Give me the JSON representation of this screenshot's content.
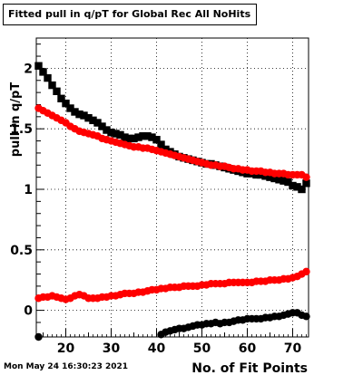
{
  "chart_data": {
    "type": "scatter",
    "title": "Fitted pull in q/pT for Global Rec All NoHits",
    "xlabel": "No. of Fit Points",
    "ylabel": "pull in q/pT",
    "xlim": [
      13.5,
      73.5
    ],
    "ylim": [
      -0.22,
      2.25
    ],
    "x_ticks": [
      20,
      30,
      40,
      50,
      60,
      70
    ],
    "y_ticks": [
      0,
      0.5,
      1,
      1.5,
      2
    ],
    "x_tick_labels": [
      "20",
      "30",
      "40",
      "50",
      "60",
      "70"
    ],
    "y_tick_labels": [
      "0",
      "0.5",
      "1",
      "1.5",
      "2"
    ],
    "grid": true,
    "series": [
      {
        "marker": "square",
        "color": "#000000",
        "x": [
          14,
          15,
          16,
          17,
          18,
          19,
          20,
          21,
          22,
          23,
          24,
          25,
          26,
          27,
          28,
          29,
          30,
          31,
          32,
          33,
          34,
          35,
          36,
          37,
          38,
          39,
          40,
          41,
          42,
          43,
          44,
          45,
          46,
          47,
          48,
          49,
          50,
          51,
          52,
          53,
          54,
          55,
          56,
          57,
          58,
          59,
          60,
          61,
          62,
          63,
          64,
          65,
          66,
          67,
          68,
          69,
          70,
          71,
          72,
          73
        ],
        "y": [
          2.02,
          1.97,
          1.92,
          1.86,
          1.81,
          1.75,
          1.71,
          1.67,
          1.64,
          1.62,
          1.61,
          1.59,
          1.57,
          1.55,
          1.52,
          1.49,
          1.47,
          1.46,
          1.45,
          1.43,
          1.42,
          1.42,
          1.43,
          1.44,
          1.44,
          1.43,
          1.41,
          1.37,
          1.33,
          1.31,
          1.29,
          1.27,
          1.26,
          1.25,
          1.24,
          1.23,
          1.22,
          1.21,
          1.21,
          1.2,
          1.19,
          1.18,
          1.17,
          1.16,
          1.15,
          1.14,
          1.13,
          1.13,
          1.12,
          1.12,
          1.11,
          1.1,
          1.09,
          1.08,
          1.07,
          1.06,
          1.03,
          1.02,
          1.0,
          1.05
        ]
      },
      {
        "marker": "circle",
        "color": "#ff0000",
        "x": [
          14,
          15,
          16,
          17,
          18,
          19,
          20,
          21,
          22,
          23,
          24,
          25,
          26,
          27,
          28,
          29,
          30,
          31,
          32,
          33,
          34,
          35,
          36,
          37,
          38,
          39,
          40,
          41,
          42,
          43,
          44,
          45,
          46,
          47,
          48,
          49,
          50,
          51,
          52,
          53,
          54,
          55,
          56,
          57,
          58,
          59,
          60,
          61,
          62,
          63,
          64,
          65,
          66,
          67,
          68,
          69,
          70,
          71,
          72,
          73
        ],
        "y": [
          1.67,
          1.65,
          1.63,
          1.61,
          1.59,
          1.57,
          1.55,
          1.52,
          1.5,
          1.48,
          1.47,
          1.46,
          1.45,
          1.44,
          1.42,
          1.41,
          1.4,
          1.39,
          1.38,
          1.37,
          1.36,
          1.35,
          1.35,
          1.34,
          1.34,
          1.33,
          1.32,
          1.31,
          1.3,
          1.29,
          1.28,
          1.27,
          1.26,
          1.25,
          1.24,
          1.23,
          1.22,
          1.21,
          1.2,
          1.2,
          1.19,
          1.19,
          1.18,
          1.17,
          1.17,
          1.16,
          1.16,
          1.15,
          1.15,
          1.15,
          1.14,
          1.14,
          1.13,
          1.13,
          1.13,
          1.12,
          1.12,
          1.12,
          1.12,
          1.1
        ]
      },
      {
        "marker": "circle",
        "color": "#ff0000",
        "x": [
          14,
          15,
          16,
          17,
          18,
          19,
          20,
          21,
          22,
          23,
          24,
          25,
          26,
          27,
          28,
          29,
          30,
          31,
          32,
          33,
          34,
          35,
          36,
          37,
          38,
          39,
          40,
          41,
          42,
          43,
          44,
          45,
          46,
          47,
          48,
          49,
          50,
          51,
          52,
          53,
          54,
          55,
          56,
          57,
          58,
          59,
          60,
          61,
          62,
          63,
          64,
          65,
          66,
          67,
          68,
          69,
          70,
          71,
          72,
          73
        ],
        "y": [
          0.1,
          0.11,
          0.11,
          0.12,
          0.11,
          0.1,
          0.09,
          0.1,
          0.12,
          0.13,
          0.12,
          0.1,
          0.1,
          0.1,
          0.11,
          0.11,
          0.12,
          0.12,
          0.13,
          0.14,
          0.14,
          0.14,
          0.15,
          0.15,
          0.16,
          0.17,
          0.17,
          0.18,
          0.18,
          0.19,
          0.19,
          0.19,
          0.2,
          0.2,
          0.2,
          0.2,
          0.21,
          0.21,
          0.22,
          0.22,
          0.22,
          0.22,
          0.23,
          0.23,
          0.23,
          0.23,
          0.23,
          0.23,
          0.24,
          0.24,
          0.24,
          0.25,
          0.25,
          0.25,
          0.26,
          0.26,
          0.27,
          0.28,
          0.3,
          0.32
        ]
      },
      {
        "marker": "circle",
        "color": "#000000",
        "x": [
          14,
          41,
          42,
          43,
          44,
          45,
          46,
          47,
          48,
          49,
          50,
          51,
          52,
          53,
          54,
          55,
          56,
          57,
          58,
          59,
          60,
          61,
          62,
          63,
          64,
          65,
          66,
          67,
          68,
          69,
          70,
          71,
          72,
          73
        ],
        "y": [
          -0.22,
          -0.2,
          -0.18,
          -0.17,
          -0.16,
          -0.15,
          -0.15,
          -0.14,
          -0.13,
          -0.12,
          -0.12,
          -0.11,
          -0.11,
          -0.1,
          -0.11,
          -0.1,
          -0.1,
          -0.09,
          -0.08,
          -0.08,
          -0.07,
          -0.07,
          -0.07,
          -0.07,
          -0.06,
          -0.06,
          -0.05,
          -0.05,
          -0.04,
          -0.03,
          -0.02,
          -0.02,
          -0.04,
          -0.05
        ]
      }
    ]
  },
  "footer": {
    "timestamp": "Mon May 24 16:30:23 2021"
  }
}
